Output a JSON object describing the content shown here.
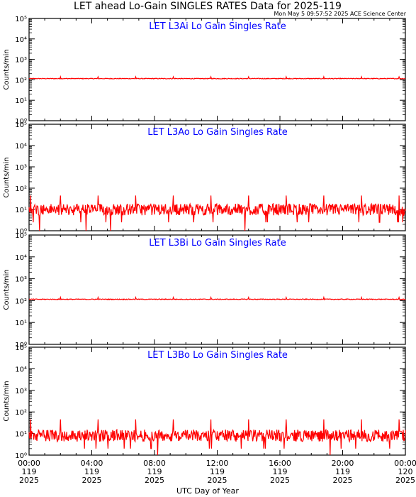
{
  "page": {
    "title": "LET ahead Lo-Gain SINGLES RATES Data for 2025-119",
    "timestamp": "Mon May  5 09:57:52 2025 ACE Science Center",
    "xlabel": "UTC Day of Year",
    "line_color": "#ff0000",
    "panel_title_color": "#0000ff"
  },
  "chart_data": [
    {
      "type": "line",
      "title": "LET L3Ai Lo Gain Singles Rate",
      "ylabel": "Counts/min",
      "yscale": "log",
      "ylim": [
        1,
        100000
      ],
      "yticks": [
        "10⁰",
        "10¹",
        "10²",
        "10³",
        "10⁴",
        "10⁵"
      ],
      "xlim": [
        0,
        24
      ],
      "baseline": 115,
      "noise": "low",
      "spikes_at_hours": [
        2.0,
        4.4,
        6.8,
        9.2,
        11.6,
        14.0,
        16.4,
        18.8,
        21.2,
        23.6
      ],
      "spike_value": 140
    },
    {
      "type": "line",
      "title": "LET L3Ao Lo Gain Singles Rate",
      "ylabel": "Counts/min",
      "yscale": "log",
      "ylim": [
        1,
        100000
      ],
      "yticks": [
        "10⁰",
        "10¹",
        "10²",
        "10³",
        "10⁴",
        "10⁵"
      ],
      "xlim": [
        0,
        24
      ],
      "baseline": 10,
      "noise": "high",
      "spikes_at_hours": [
        0.1,
        2.0,
        4.4,
        6.8,
        9.2,
        11.6,
        14.0,
        16.4,
        18.8,
        21.2,
        23.6
      ],
      "spike_value": 45
    },
    {
      "type": "line",
      "title": "LET L3Bi Lo Gain Singles Rate",
      "ylabel": "Counts/min",
      "yscale": "log",
      "ylim": [
        1,
        100000
      ],
      "yticks": [
        "10⁰",
        "10¹",
        "10²",
        "10³",
        "10⁴",
        "10⁵"
      ],
      "xlim": [
        0,
        24
      ],
      "baseline": 115,
      "noise": "low",
      "spikes_at_hours": [
        2.0,
        4.4,
        6.8,
        9.2,
        11.6,
        14.0,
        16.4,
        18.8,
        21.2,
        23.6
      ],
      "spike_value": 140
    },
    {
      "type": "line",
      "title": "LET L3Bo Lo Gain Singles Rate",
      "ylabel": "Counts/min",
      "yscale": "log",
      "ylim": [
        1,
        100000
      ],
      "yticks": [
        "10⁰",
        "10¹",
        "10²",
        "10³",
        "10⁴",
        "10⁵"
      ],
      "xlim": [
        0,
        24
      ],
      "baseline": 8,
      "noise": "high",
      "spikes_at_hours": [
        0.1,
        2.0,
        4.4,
        6.8,
        9.2,
        11.6,
        14.0,
        16.4,
        18.8,
        21.2,
        23.6
      ],
      "spike_value": 45
    }
  ],
  "xaxis": {
    "ticks": [
      {
        "hour": 0,
        "time": "00:00",
        "doy": "119",
        "year": "2025"
      },
      {
        "hour": 4,
        "time": "04:00",
        "doy": "119",
        "year": "2025"
      },
      {
        "hour": 8,
        "time": "08:00",
        "doy": "119",
        "year": "2025"
      },
      {
        "hour": 12,
        "time": "12:00",
        "doy": "119",
        "year": "2025"
      },
      {
        "hour": 16,
        "time": "16:00",
        "doy": "119",
        "year": "2025"
      },
      {
        "hour": 20,
        "time": "20:00",
        "doy": "119",
        "year": "2025"
      },
      {
        "hour": 24,
        "time": "00:00",
        "doy": "120",
        "year": "2025"
      }
    ]
  }
}
